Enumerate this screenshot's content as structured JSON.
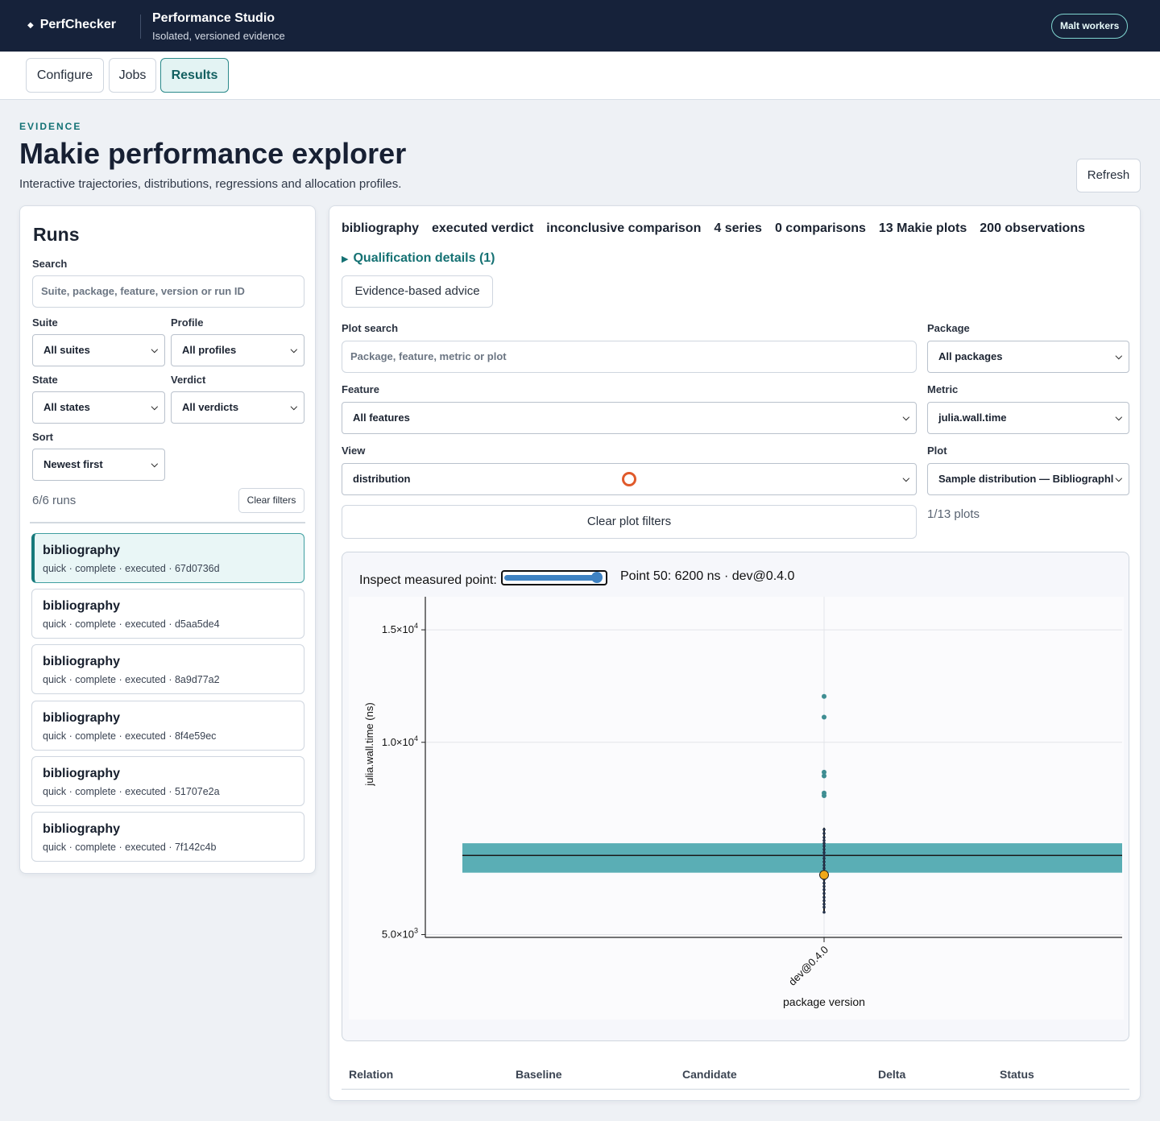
{
  "header": {
    "brand_glyph": "◆",
    "brand": "PerfChecker",
    "studio_title": "Performance Studio",
    "studio_subtitle": "Isolated, versioned evidence",
    "workers_button": "Malt workers"
  },
  "tabs": [
    {
      "label": "Configure",
      "active": false
    },
    {
      "label": "Jobs",
      "active": false
    },
    {
      "label": "Results",
      "active": true
    }
  ],
  "page": {
    "eyebrow": "EVIDENCE",
    "title": "Makie performance explorer",
    "subtitle": "Interactive trajectories, distributions, regressions and allocation profiles.",
    "refresh": "Refresh"
  },
  "runs": {
    "title": "Runs",
    "search_label": "Search",
    "search_placeholder": "Suite, package, feature, version or run ID",
    "suite_label": "Suite",
    "suite_value": "All suites",
    "profile_label": "Profile",
    "profile_value": "All profiles",
    "state_label": "State",
    "state_value": "All states",
    "verdict_label": "Verdict",
    "verdict_value": "All verdicts",
    "sort_label": "Sort",
    "sort_value": "Newest first",
    "count": "6/6 runs",
    "clear_filters": "Clear filters",
    "items": [
      {
        "name": "bibliography",
        "meta": "quick · complete · executed · 67d0736d",
        "selected": true
      },
      {
        "name": "bibliography",
        "meta": "quick · complete · executed · d5aa5de4",
        "selected": false
      },
      {
        "name": "bibliography",
        "meta": "quick · complete · executed · 8a9d77a2",
        "selected": false
      },
      {
        "name": "bibliography",
        "meta": "quick · complete · executed · 8f4e59ec",
        "selected": false
      },
      {
        "name": "bibliography",
        "meta": "quick · complete · executed · 51707e2a",
        "selected": false
      },
      {
        "name": "bibliography",
        "meta": "quick · complete · executed · 7f142c4b",
        "selected": false
      }
    ]
  },
  "summary": {
    "items": [
      "bibliography",
      "executed verdict",
      "inconclusive comparison",
      "4 series",
      "0 comparisons",
      "13 Makie plots",
      "200 observations"
    ],
    "qualification": "Qualification details (1)",
    "advice_button": "Evidence-based advice"
  },
  "filters": {
    "plot_search_label": "Plot search",
    "plot_search_placeholder": "Package, feature, metric or plot",
    "package_label": "Package",
    "package_value": "All packages",
    "feature_label": "Feature",
    "feature_value": "All features",
    "metric_label": "Metric",
    "metric_value": "julia.wall.time",
    "view_label": "View",
    "view_value": "distribution",
    "plot_label": "Plot",
    "plot_value": "Sample distribution — Bibliographl",
    "clear_plot_filters": "Clear plot filters",
    "plots_count": "1/13 plots"
  },
  "inspector": {
    "label": "Inspect measured point:",
    "slider_fraction": 0.9,
    "readout": "Point 50: 6200 ns · dev@0.4.0"
  },
  "chart_data": {
    "type": "scatter",
    "scale": "log",
    "xlabel": "package version",
    "ylabel": "julia.wall.time (ns)",
    "categories": [
      "dev@0.4.0"
    ],
    "yticks": [
      {
        "value": 5000,
        "label_base": "5.0×10",
        "label_exp": "3"
      },
      {
        "value": 10000,
        "label_base": "1.0×10",
        "label_exp": "4"
      },
      {
        "value": 15000,
        "label_base": "1.5×10",
        "label_exp": "4"
      }
    ],
    "ylim": [
      4950,
      16900
    ],
    "box": {
      "q1": 6250,
      "median": 6650,
      "q3": 6950
    },
    "whisker": [
      5420,
      7350
    ],
    "outliers": [
      8250,
      8330,
      8860,
      8980,
      10950,
      11800
    ],
    "inliers": [
      5420,
      5520,
      5580,
      5650,
      5720,
      5800,
      5880,
      5950,
      6020,
      6100,
      6200,
      6280,
      6350,
      6420,
      6500,
      6580,
      6650,
      6720,
      6800,
      6880,
      6950,
      7020,
      7100,
      7200,
      7300
    ],
    "highlight": 6200,
    "grid": true,
    "colors": {
      "box": "#5aaeb5",
      "point": "#3f8e93",
      "inlier": "#24324a",
      "highlight": "#f0a818"
    }
  },
  "table": {
    "headers": [
      "Relation",
      "Baseline",
      "Candidate",
      "Delta",
      "Status"
    ]
  }
}
